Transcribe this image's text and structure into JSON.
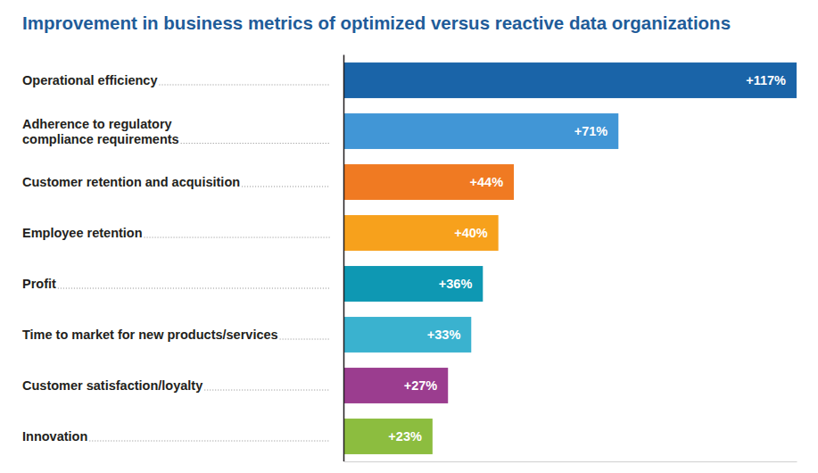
{
  "chart_data": {
    "type": "bar",
    "orientation": "horizontal",
    "title": "Improvement in business metrics of optimized versus reactive data organizations",
    "categories": [
      "Operational efficiency",
      "Adherence to regulatory\ncompliance requirements",
      "Customer retention and acquisition",
      "Employee retention",
      "Profit",
      "Time to market for new products/services",
      "Customer satisfaction/loyalty",
      "Innovation"
    ],
    "values": [
      117,
      71,
      44,
      40,
      36,
      33,
      27,
      23
    ],
    "value_labels": [
      "+117%",
      "+71%",
      "+44%",
      "+40%",
      "+36%",
      "+33%",
      "+27%",
      "+23%"
    ],
    "colors": [
      "#1a64a8",
      "#4196d6",
      "#f07a22",
      "#f7a11c",
      "#0e98b3",
      "#3ab2cf",
      "#9b3d8f",
      "#8cbd3f"
    ],
    "xlim": [
      0,
      117
    ],
    "xticks": [
      0
    ],
    "tick_labels": false,
    "data_labels": true
  }
}
